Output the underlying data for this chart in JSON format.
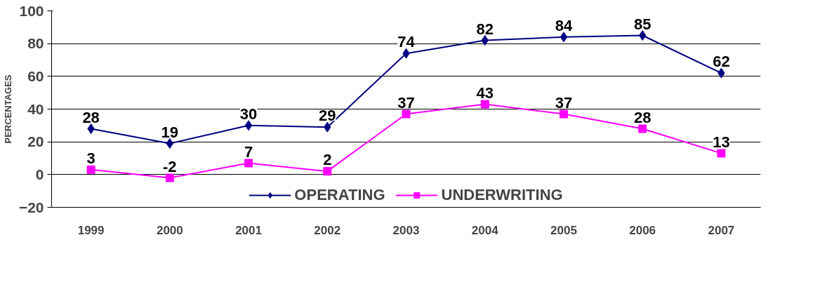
{
  "chart_data": {
    "type": "line",
    "ylabel": "PERCENTAGES",
    "categories": [
      "1999",
      "2000",
      "2001",
      "2002",
      "2003",
      "2004",
      "2005",
      "2006",
      "2007"
    ],
    "series": [
      {
        "name": "OPERATING",
        "color": "#000080",
        "marker": "diamond",
        "values": [
          28,
          19,
          30,
          29,
          74,
          82,
          84,
          85,
          62
        ]
      },
      {
        "name": "UNDERWRITING",
        "color": "#ff00ff",
        "marker": "square",
        "values": [
          3,
          -2,
          7,
          2,
          37,
          43,
          37,
          28,
          13
        ]
      }
    ],
    "ylim": [
      -20,
      100
    ],
    "yticks": [
      -20,
      0,
      20,
      40,
      60,
      80,
      100
    ],
    "grid": "y",
    "legend": "bottom",
    "data_labels": true
  }
}
